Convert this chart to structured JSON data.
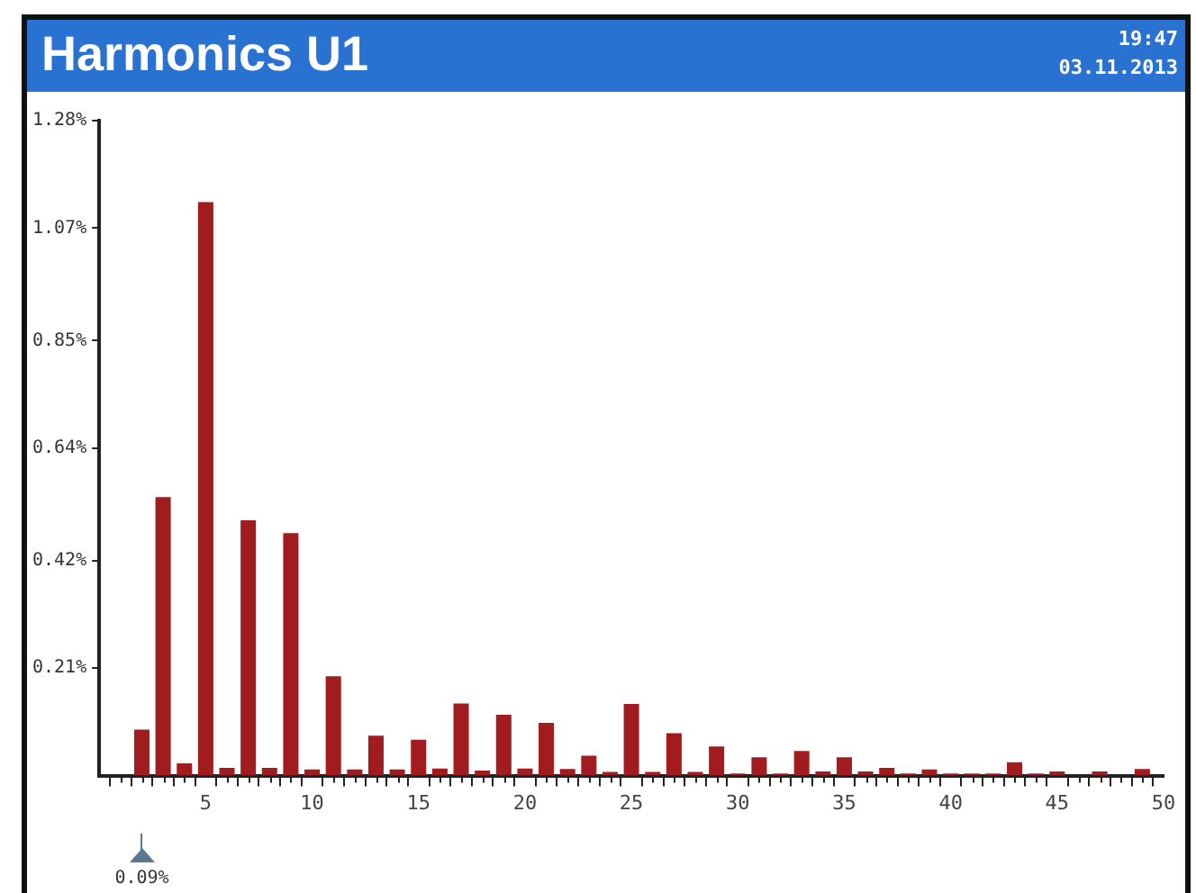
{
  "chart_data": {
    "type": "bar",
    "title": "Harmonics U1",
    "annotations": [
      "19:47",
      "03.11.2013",
      "0.09%"
    ],
    "x": [
      2,
      3,
      4,
      5,
      6,
      7,
      8,
      9,
      10,
      11,
      12,
      13,
      14,
      15,
      16,
      17,
      18,
      19,
      20,
      21,
      22,
      23,
      24,
      25,
      26,
      27,
      28,
      29,
      30,
      31,
      32,
      33,
      34,
      35,
      36,
      37,
      38,
      39,
      40,
      41,
      42,
      43,
      44,
      45,
      46,
      47,
      48,
      49,
      50
    ],
    "values": [
      0.09,
      0.544,
      0.024,
      1.121,
      0.015,
      0.499,
      0.015,
      0.474,
      0.012,
      0.194,
      0.012,
      0.078,
      0.012,
      0.07,
      0.014,
      0.141,
      0.01,
      0.119,
      0.014,
      0.103,
      0.013,
      0.039,
      0.007,
      0.14,
      0.007,
      0.083,
      0.007,
      0.057,
      0.004,
      0.036,
      0.004,
      0.048,
      0.008,
      0.036,
      0.008,
      0.015,
      0.004,
      0.012,
      0.004,
      0.004,
      0.004,
      0.026,
      0.004,
      0.008,
      0,
      0.008,
      0,
      0.013,
      0
    ],
    "color": "#a01c1f",
    "xlim": [
      0,
      50
    ],
    "xticks": [
      {
        "value": 1,
        "label": null
      },
      {
        "value": 2,
        "label": null
      },
      {
        "value": 3,
        "label": null
      },
      {
        "value": 4,
        "label": null
      },
      5,
      {
        "value": 6,
        "label": null
      },
      {
        "value": 7,
        "label": null
      },
      {
        "value": 8,
        "label": null
      },
      {
        "value": 9,
        "label": null
      },
      10,
      {
        "value": 11,
        "label": null
      },
      {
        "value": 12,
        "label": null
      },
      {
        "value": 13,
        "label": null
      },
      {
        "value": 14,
        "label": null
      },
      15,
      {
        "value": 16,
        "label": null
      },
      {
        "value": 17,
        "label": null
      },
      {
        "value": 18,
        "label": null
      },
      {
        "value": 19,
        "label": null
      },
      20,
      {
        "value": 21,
        "label": null
      },
      {
        "value": 22,
        "label": null
      },
      {
        "value": 23,
        "label": null
      },
      {
        "value": 24,
        "label": null
      },
      25,
      {
        "value": 26,
        "label": null
      },
      {
        "value": 27,
        "label": null
      },
      {
        "value": 28,
        "label": null
      },
      {
        "value": 29,
        "label": null
      },
      30,
      {
        "value": 31,
        "label": null
      },
      {
        "value": 32,
        "label": null
      },
      {
        "value": 33,
        "label": null
      },
      {
        "value": 34,
        "label": null
      },
      35,
      {
        "value": 36,
        "label": null
      },
      {
        "value": 37,
        "label": null
      },
      {
        "value": 38,
        "label": null
      },
      {
        "value": 39,
        "label": null
      },
      40,
      {
        "value": 41,
        "label": null
      },
      {
        "value": 42,
        "label": null
      },
      {
        "value": 43,
        "label": null
      },
      {
        "value": 44,
        "label": null
      },
      45,
      {
        "value": 46,
        "label": null
      },
      {
        "value": 47,
        "label": null
      },
      {
        "value": 48,
        "label": null
      },
      {
        "value": 49,
        "label": null
      },
      50
    ],
    "ylim": [
      0,
      1.28
    ],
    "yticks": [
      {
        "value": 0.21,
        "label": "0.21%"
      },
      {
        "value": 0.42,
        "label": "0.42%"
      },
      {
        "value": 0.64,
        "label": "0.64%"
      },
      {
        "value": 0.85,
        "label": "0.85%"
      },
      {
        "value": 1.07,
        "label": "1.07%"
      },
      {
        "value": 1.28,
        "label": "1.28%"
      }
    ],
    "grid": false,
    "legend": false
  }
}
